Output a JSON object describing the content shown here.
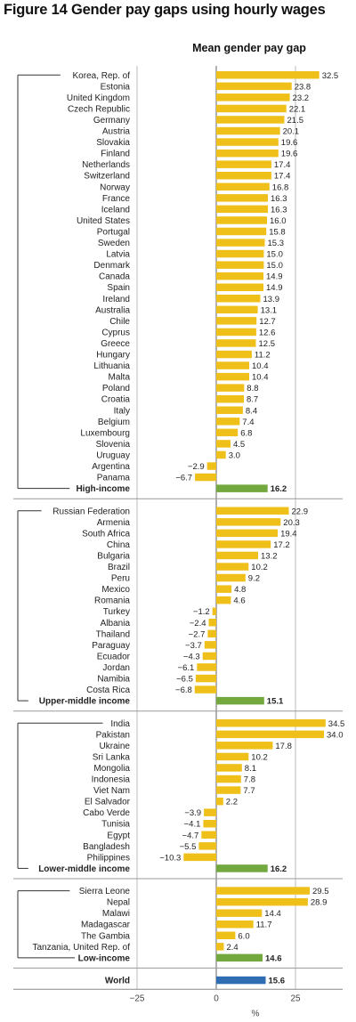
{
  "figure_title": "Figure 14  Gender pay gaps using hourly wages",
  "chart_data": {
    "type": "bar",
    "orientation": "horizontal",
    "title": "Figure 14  Gender pay gaps using hourly wages",
    "subtitle": "Mean gender pay gap",
    "xlabel": "%",
    "xlim": [
      -30,
      37
    ],
    "xticks": [
      -25,
      0,
      25
    ],
    "tick_labels": [
      "−25",
      "0",
      "25"
    ],
    "grid": "vertical lines at -25, 0, 25",
    "colors": {
      "country": "#f0c01a",
      "group": "#72a83e",
      "world": "#2e6db3",
      "axis": "#888888"
    },
    "groups": [
      {
        "name": "High-income",
        "value": 16.2,
        "items": [
          {
            "label": "Korea, Rep. of",
            "value": 32.5
          },
          {
            "label": "Estonia",
            "value": 23.8
          },
          {
            "label": "United Kingdom",
            "value": 23.2
          },
          {
            "label": "Czech Republic",
            "value": 22.1
          },
          {
            "label": "Germany",
            "value": 21.5
          },
          {
            "label": "Austria",
            "value": 20.1
          },
          {
            "label": "Slovakia",
            "value": 19.6
          },
          {
            "label": "Finland",
            "value": 19.6
          },
          {
            "label": "Netherlands",
            "value": 17.4
          },
          {
            "label": "Switzerland",
            "value": 17.4
          },
          {
            "label": "Norway",
            "value": 16.8
          },
          {
            "label": "France",
            "value": 16.3
          },
          {
            "label": "Iceland",
            "value": 16.3
          },
          {
            "label": "United States",
            "value": 16.0
          },
          {
            "label": "Portugal",
            "value": 15.8
          },
          {
            "label": "Sweden",
            "value": 15.3
          },
          {
            "label": "Latvia",
            "value": 15.0
          },
          {
            "label": "Denmark",
            "value": 15.0
          },
          {
            "label": "Canada",
            "value": 14.9
          },
          {
            "label": "Spain",
            "value": 14.9
          },
          {
            "label": "Ireland",
            "value": 13.9
          },
          {
            "label": "Australia",
            "value": 13.1
          },
          {
            "label": "Chile",
            "value": 12.7
          },
          {
            "label": "Cyprus",
            "value": 12.6
          },
          {
            "label": "Greece",
            "value": 12.5
          },
          {
            "label": "Hungary",
            "value": 11.2
          },
          {
            "label": "Lithuania",
            "value": 10.4
          },
          {
            "label": "Malta",
            "value": 10.4
          },
          {
            "label": "Poland",
            "value": 8.8
          },
          {
            "label": "Croatia",
            "value": 8.7
          },
          {
            "label": "Italy",
            "value": 8.4
          },
          {
            "label": "Belgium",
            "value": 7.4
          },
          {
            "label": "Luxembourg",
            "value": 6.8
          },
          {
            "label": "Slovenia",
            "value": 4.5
          },
          {
            "label": "Uruguay",
            "value": 3.0
          },
          {
            "label": "Argentina",
            "value": -2.9
          },
          {
            "label": "Panama",
            "value": -6.7
          }
        ]
      },
      {
        "name": "Upper-middle income",
        "value": 15.1,
        "items": [
          {
            "label": "Russian Federation",
            "value": 22.9
          },
          {
            "label": "Armenia",
            "value": 20.3
          },
          {
            "label": "South Africa",
            "value": 19.4
          },
          {
            "label": "China",
            "value": 17.2
          },
          {
            "label": "Bulgaria",
            "value": 13.2
          },
          {
            "label": "Brazil",
            "value": 10.2
          },
          {
            "label": "Peru",
            "value": 9.2
          },
          {
            "label": "Mexico",
            "value": 4.8
          },
          {
            "label": "Romania",
            "value": 4.6
          },
          {
            "label": "Turkey",
            "value": -1.2
          },
          {
            "label": "Albania",
            "value": -2.4
          },
          {
            "label": "Thailand",
            "value": -2.7
          },
          {
            "label": "Paraguay",
            "value": -3.7
          },
          {
            "label": "Ecuador",
            "value": -4.3
          },
          {
            "label": "Jordan",
            "value": -6.1
          },
          {
            "label": "Namibia",
            "value": -6.5
          },
          {
            "label": "Costa Rica",
            "value": -6.8
          }
        ]
      },
      {
        "name": "Lower-middle income",
        "value": 16.2,
        "items": [
          {
            "label": "India",
            "value": 34.5
          },
          {
            "label": "Pakistan",
            "value": 34.0
          },
          {
            "label": "Ukraine",
            "value": 17.8
          },
          {
            "label": "Sri Lanka",
            "value": 10.2
          },
          {
            "label": "Mongolia",
            "value": 8.1
          },
          {
            "label": "Indonesia",
            "value": 7.8
          },
          {
            "label": "Viet Nam",
            "value": 7.7
          },
          {
            "label": "El Salvador",
            "value": 2.2
          },
          {
            "label": "Cabo Verde",
            "value": -3.9
          },
          {
            "label": "Tunisia",
            "value": -4.1
          },
          {
            "label": "Egypt",
            "value": -4.7
          },
          {
            "label": "Bangladesh",
            "value": -5.5
          },
          {
            "label": "Philippines",
            "value": -10.3
          }
        ]
      },
      {
        "name": "Low-income",
        "value": 14.6,
        "items": [
          {
            "label": "Sierra Leone",
            "value": 29.5
          },
          {
            "label": "Nepal",
            "value": 28.9
          },
          {
            "label": "Malawi",
            "value": 14.4
          },
          {
            "label": "Madagascar",
            "value": 11.7
          },
          {
            "label": "The Gambia",
            "value": 6.0
          },
          {
            "label": "Tanzania, United Rep. of",
            "value": 2.4
          }
        ]
      }
    ],
    "world": {
      "label": "World",
      "value": 15.6
    }
  }
}
